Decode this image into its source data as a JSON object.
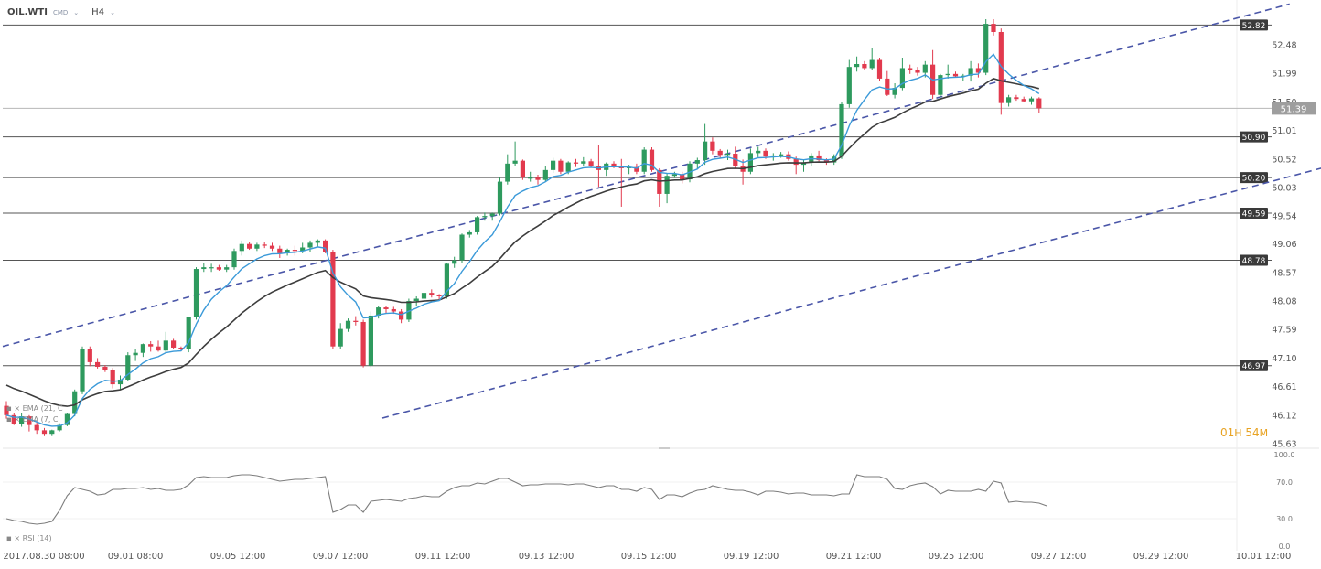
{
  "header": {
    "symbol": "OIL.WTI",
    "instrument_type": "CMD",
    "timeframe": "H4",
    "chevron_icon": "chevron-down-icon"
  },
  "timer": {
    "hours": "01",
    "h_unit": "H",
    "minutes": "54",
    "m_unit": "M"
  },
  "indicator_labels": {
    "ema21": "EMA (21, C",
    "ema7": "EMA (7, C",
    "rsi": "RSI (14)"
  },
  "colors": {
    "bull": "#2e9a5e",
    "bear": "#e23a4e",
    "ema_fast": "#3b9ad9",
    "ema_slow": "#3d3d3d",
    "channel": "#4a56a8",
    "level_line": "#555555",
    "timer": "#e8a323"
  },
  "chart_data": [
    {
      "type": "candlestick",
      "title": "OIL.WTI H4",
      "y_ticks": [
        "52.48",
        "51.99",
        "51.50",
        "51.01",
        "50.52",
        "50.03",
        "49.54",
        "49.06",
        "48.57",
        "48.08",
        "47.59",
        "47.10",
        "46.61",
        "46.12",
        "45.63"
      ],
      "x_ticks": [
        "2017.08.30 08:00",
        "09.01 08:00",
        "09.05 12:00",
        "09.07 12:00",
        "09.11 12:00",
        "09.13 12:00",
        "09.15 12:00",
        "09.19 12:00",
        "09.21 12:00",
        "09.25 12:00",
        "09.27 12:00",
        "09.29 12:00",
        "10.01 12:00"
      ],
      "ylim": [
        45.55,
        53.05
      ],
      "horizontal_levels": [
        {
          "value": 52.82,
          "label": "52.82"
        },
        {
          "value": 50.9,
          "label": "50.90"
        },
        {
          "value": 50.2,
          "label": "50.20"
        },
        {
          "value": 49.59,
          "label": "49.59"
        },
        {
          "value": 48.78,
          "label": "48.78"
        },
        {
          "value": 46.97,
          "label": "46.97"
        }
      ],
      "current_price": {
        "value": 51.39,
        "label": "51.39"
      },
      "channel_lines": [
        {
          "x_start": 0,
          "y_start": 47.3,
          "x_end": 169,
          "y_end": 53.18
        },
        {
          "x_start": 50,
          "y_start": 46.07,
          "x_end": 227,
          "y_end": 52.23
        }
      ],
      "candles": [
        [
          46.28,
          46.36,
          46.06,
          46.12
        ],
        [
          46.12,
          46.15,
          45.95,
          45.97
        ],
        [
          45.97,
          46.16,
          45.92,
          46.1
        ],
        [
          46.1,
          46.12,
          45.84,
          45.95
        ],
        [
          45.95,
          46.02,
          45.8,
          45.86
        ],
        [
          45.86,
          45.9,
          45.76,
          45.8
        ],
        [
          45.8,
          45.87,
          45.76,
          45.86
        ],
        [
          45.86,
          45.98,
          45.84,
          45.95
        ],
        [
          45.95,
          46.16,
          45.93,
          46.14
        ],
        [
          46.14,
          46.56,
          46.1,
          46.53
        ],
        [
          46.53,
          47.3,
          46.48,
          47.26
        ],
        [
          47.26,
          47.3,
          46.96,
          47.03
        ],
        [
          47.03,
          47.1,
          46.92,
          46.95
        ],
        [
          46.95,
          46.98,
          46.86,
          46.9
        ],
        [
          46.9,
          46.93,
          46.58,
          46.65
        ],
        [
          46.65,
          46.8,
          46.56,
          46.73
        ],
        [
          46.73,
          47.2,
          46.7,
          47.15
        ],
        [
          47.15,
          47.25,
          47.05,
          47.19
        ],
        [
          47.19,
          47.35,
          47.12,
          47.34
        ],
        [
          47.34,
          47.39,
          47.21,
          47.3
        ],
        [
          47.3,
          47.4,
          47.21,
          47.23
        ],
        [
          47.23,
          47.55,
          47.2,
          47.4
        ],
        [
          47.4,
          47.43,
          47.26,
          47.28
        ],
        [
          47.28,
          47.3,
          47.23,
          47.25
        ],
        [
          47.25,
          47.81,
          47.2,
          47.8
        ],
        [
          47.8,
          48.66,
          47.76,
          48.63
        ],
        [
          48.63,
          48.74,
          48.58,
          48.66
        ],
        [
          48.66,
          48.72,
          48.58,
          48.66
        ],
        [
          48.66,
          48.7,
          48.6,
          48.62
        ],
        [
          48.62,
          48.7,
          48.58,
          48.66
        ],
        [
          48.66,
          48.98,
          48.62,
          48.94
        ],
        [
          48.94,
          49.12,
          48.86,
          49.06
        ],
        [
          49.06,
          49.1,
          48.96,
          48.98
        ],
        [
          48.98,
          49.08,
          48.94,
          49.05
        ],
        [
          49.05,
          49.09,
          48.99,
          49.03
        ],
        [
          49.03,
          49.08,
          48.94,
          48.98
        ],
        [
          48.98,
          49.03,
          48.82,
          48.9
        ],
        [
          48.9,
          48.98,
          48.86,
          48.96
        ],
        [
          48.96,
          49.03,
          48.86,
          48.94
        ],
        [
          48.94,
          49.08,
          48.9,
          49.0
        ],
        [
          49.0,
          49.12,
          48.93,
          49.08
        ],
        [
          49.08,
          49.14,
          49.0,
          49.12
        ],
        [
          49.12,
          49.14,
          48.9,
          48.92
        ],
        [
          48.92,
          48.96,
          47.26,
          47.3
        ],
        [
          47.3,
          47.7,
          47.26,
          47.6
        ],
        [
          47.6,
          47.78,
          47.55,
          47.74
        ],
        [
          47.74,
          47.82,
          47.66,
          47.72
        ],
        [
          47.72,
          47.76,
          46.94,
          46.97
        ],
        [
          46.97,
          47.9,
          46.94,
          47.83
        ],
        [
          47.83,
          48.0,
          47.78,
          47.97
        ],
        [
          47.97,
          47.99,
          47.87,
          47.94
        ],
        [
          47.94,
          47.98,
          47.86,
          47.9
        ],
        [
          47.9,
          47.94,
          47.7,
          47.76
        ],
        [
          47.76,
          48.12,
          47.72,
          48.08
        ],
        [
          48.08,
          48.16,
          48.0,
          48.12
        ],
        [
          48.12,
          48.26,
          48.06,
          48.22
        ],
        [
          48.22,
          48.28,
          48.14,
          48.18
        ],
        [
          48.18,
          48.2,
          48.1,
          48.16
        ],
        [
          48.16,
          48.74,
          48.12,
          48.72
        ],
        [
          48.72,
          48.84,
          48.65,
          48.78
        ],
        [
          48.78,
          49.24,
          48.74,
          49.22
        ],
        [
          49.22,
          49.3,
          49.17,
          49.26
        ],
        [
          49.26,
          49.54,
          49.22,
          49.52
        ],
        [
          49.52,
          49.6,
          49.46,
          49.54
        ],
        [
          49.54,
          49.6,
          49.46,
          49.58
        ],
        [
          49.58,
          50.2,
          49.55,
          50.13
        ],
        [
          50.13,
          50.6,
          50.08,
          50.44
        ],
        [
          50.44,
          50.82,
          50.4,
          50.49
        ],
        [
          50.49,
          50.51,
          50.16,
          50.2
        ],
        [
          50.2,
          50.3,
          50.13,
          50.2
        ],
        [
          50.2,
          50.25,
          50.08,
          50.16
        ],
        [
          50.16,
          50.4,
          50.13,
          50.33
        ],
        [
          50.33,
          50.54,
          50.28,
          50.49
        ],
        [
          50.49,
          50.52,
          50.26,
          50.3
        ],
        [
          50.3,
          50.48,
          50.26,
          50.46
        ],
        [
          50.46,
          50.52,
          50.38,
          50.44
        ],
        [
          50.44,
          50.55,
          50.4,
          50.48
        ],
        [
          50.48,
          50.52,
          50.38,
          50.4
        ],
        [
          50.4,
          50.76,
          50.04,
          50.33
        ],
        [
          50.33,
          50.46,
          50.23,
          50.44
        ],
        [
          50.44,
          50.48,
          50.36,
          50.4
        ],
        [
          50.4,
          50.52,
          49.7,
          50.36
        ],
        [
          50.36,
          50.42,
          50.26,
          50.38
        ],
        [
          50.38,
          50.44,
          50.26,
          50.3
        ],
        [
          50.3,
          50.72,
          50.26,
          50.68
        ],
        [
          50.68,
          50.72,
          50.3,
          50.33
        ],
        [
          50.33,
          50.36,
          49.7,
          49.92
        ],
        [
          49.92,
          50.28,
          49.76,
          50.23
        ],
        [
          50.23,
          50.3,
          50.19,
          50.26
        ],
        [
          50.26,
          50.3,
          50.1,
          50.17
        ],
        [
          50.17,
          50.48,
          50.12,
          50.44
        ],
        [
          50.44,
          50.54,
          50.34,
          50.5
        ],
        [
          50.5,
          51.12,
          50.42,
          50.82
        ],
        [
          50.82,
          50.89,
          50.6,
          50.66
        ],
        [
          50.66,
          50.69,
          50.53,
          50.59
        ],
        [
          50.59,
          50.68,
          50.5,
          50.61
        ],
        [
          50.61,
          50.73,
          50.36,
          50.4
        ],
        [
          50.4,
          50.51,
          50.08,
          50.3
        ],
        [
          50.3,
          50.7,
          50.26,
          50.62
        ],
        [
          50.62,
          50.73,
          50.55,
          50.66
        ],
        [
          50.66,
          50.7,
          50.52,
          50.56
        ],
        [
          50.56,
          50.62,
          50.49,
          50.58
        ],
        [
          50.58,
          50.64,
          50.54,
          50.6
        ],
        [
          50.6,
          50.65,
          50.49,
          50.52
        ],
        [
          50.52,
          50.56,
          50.26,
          50.42
        ],
        [
          50.42,
          50.5,
          50.3,
          50.46
        ],
        [
          50.46,
          50.62,
          50.4,
          50.58
        ],
        [
          50.58,
          50.66,
          50.48,
          50.5
        ],
        [
          50.5,
          50.53,
          50.42,
          50.46
        ],
        [
          50.46,
          50.6,
          50.42,
          50.56
        ],
        [
          50.56,
          51.5,
          50.52,
          51.46
        ],
        [
          51.46,
          52.22,
          51.4,
          52.1
        ],
        [
          52.1,
          52.28,
          52.02,
          52.15
        ],
        [
          52.15,
          52.2,
          52.05,
          52.08
        ],
        [
          52.08,
          52.43,
          52.04,
          52.22
        ],
        [
          52.22,
          52.26,
          51.86,
          51.9
        ],
        [
          51.9,
          52.03,
          51.6,
          51.62
        ],
        [
          51.62,
          51.82,
          51.56,
          51.74
        ],
        [
          51.74,
          52.26,
          51.7,
          52.08
        ],
        [
          52.08,
          52.14,
          51.98,
          52.04
        ],
        [
          52.04,
          52.1,
          51.95,
          52.0
        ],
        [
          52.0,
          52.2,
          51.92,
          52.14
        ],
        [
          52.14,
          52.39,
          51.55,
          51.62
        ],
        [
          51.62,
          51.98,
          51.58,
          51.96
        ],
        [
          51.96,
          52.14,
          51.9,
          51.98
        ],
        [
          51.98,
          52.02,
          51.92,
          51.94
        ],
        [
          51.94,
          51.98,
          51.86,
          51.95
        ],
        [
          51.95,
          52.2,
          51.85,
          52.08
        ],
        [
          52.08,
          52.16,
          51.92,
          52.0
        ],
        [
          52.0,
          52.92,
          51.96,
          52.84
        ],
        [
          52.84,
          52.92,
          52.64,
          52.7
        ],
        [
          52.7,
          52.76,
          51.28,
          51.48
        ],
        [
          51.48,
          51.62,
          51.42,
          51.58
        ],
        [
          51.58,
          51.62,
          51.52,
          51.55
        ],
        [
          51.55,
          51.59,
          51.5,
          51.51
        ],
        [
          51.51,
          51.59,
          51.45,
          51.56
        ],
        [
          51.56,
          51.58,
          51.31,
          51.39
        ]
      ],
      "ema_fast_name": "EMA (7, C",
      "ema_slow_name": "EMA (21, C"
    },
    {
      "type": "line",
      "title": "RSI (14)",
      "ylim": [
        0,
        100
      ],
      "y_ticks": [
        "100.0",
        "70.0",
        "30.0",
        "0.0"
      ],
      "values": [
        30,
        28,
        27,
        25,
        24,
        25,
        27,
        39,
        55,
        64,
        62,
        60,
        56,
        57,
        62,
        62,
        63,
        63,
        64,
        62,
        63,
        61,
        61,
        62,
        67,
        75,
        76,
        75,
        75,
        75,
        77,
        78,
        78,
        77,
        75,
        73,
        71,
        72,
        73,
        73,
        74,
        75,
        76,
        37,
        40,
        45,
        45,
        37,
        49,
        50,
        51,
        50,
        49,
        52,
        53,
        55,
        54,
        54,
        60,
        64,
        66,
        66,
        69,
        68,
        71,
        74,
        74,
        70,
        66,
        67,
        67,
        68,
        68,
        68,
        67,
        68,
        68,
        66,
        64,
        66,
        66,
        62,
        62,
        60,
        64,
        62,
        51,
        56,
        56,
        54,
        58,
        61,
        62,
        66,
        64,
        62,
        61,
        61,
        59,
        56,
        60,
        60,
        59,
        57,
        58,
        58,
        56,
        56,
        56,
        55,
        57,
        57,
        78,
        76,
        76,
        76,
        73,
        63,
        62,
        66,
        68,
        69,
        65,
        57,
        61,
        60,
        60,
        60,
        62,
        60,
        71,
        69,
        48,
        49,
        48,
        48,
        47,
        44
      ]
    }
  ]
}
